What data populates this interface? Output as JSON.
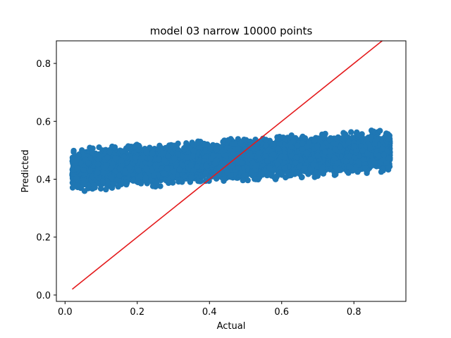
{
  "chart_data": {
    "type": "scatter",
    "title": "model 03 narrow 10000 points",
    "xlabel": "Actual",
    "ylabel": "Predicted",
    "xlim": [
      -0.024,
      0.944
    ],
    "ylim": [
      -0.022,
      0.878
    ],
    "xticks": [
      "0.0",
      "0.2",
      "0.4",
      "0.6",
      "0.8"
    ],
    "yticks": [
      "0.0",
      "0.2",
      "0.4",
      "0.6",
      "0.8"
    ],
    "grid": false,
    "series": [
      {
        "kind": "scatter",
        "color": "#1f77b4",
        "point_count": 10000,
        "x_range": [
          0.02,
          0.9
        ],
        "trend": {
          "intercept": 0.43,
          "slope": 0.075
        },
        "spread": 0.025
      },
      {
        "kind": "line",
        "color": "#e41a1c",
        "x": [
          0.02,
          0.9
        ],
        "y": [
          0.02,
          0.9
        ]
      }
    ]
  }
}
